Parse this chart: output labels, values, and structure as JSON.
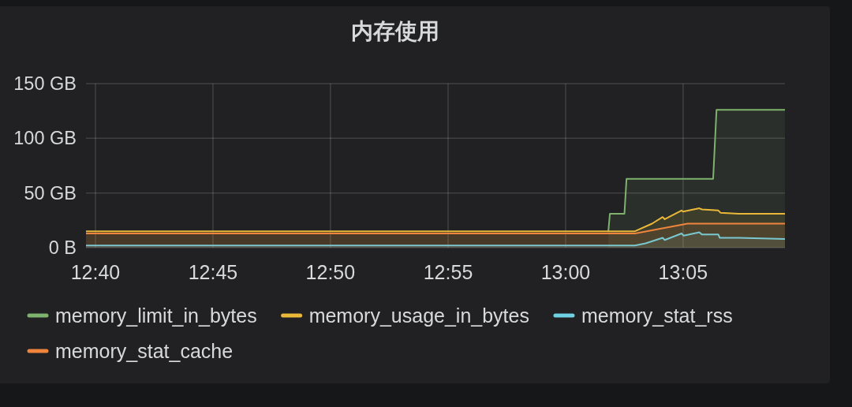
{
  "chart_data": {
    "type": "area",
    "title": "内存使用",
    "xlim": [
      12.66,
      13.1555
    ],
    "xticks": [
      {
        "value": 12.6667,
        "label": "12:40"
      },
      {
        "value": 12.75,
        "label": "12:45"
      },
      {
        "value": 12.8333,
        "label": "12:50"
      },
      {
        "value": 12.9167,
        "label": "12:55"
      },
      {
        "value": 13,
        "label": "13:00"
      },
      {
        "value": 13.0833,
        "label": "13:05"
      }
    ],
    "ylim": [
      0,
      150
    ],
    "yticks": [
      {
        "value": 0,
        "label": "0 B"
      },
      {
        "value": 50,
        "label": "50 GB"
      },
      {
        "value": 100,
        "label": "100 GB"
      },
      {
        "value": 150,
        "label": "150 GB"
      }
    ],
    "grid": true,
    "legend": "bottom",
    "series": [
      {
        "name": "memory_limit_in_bytes",
        "color": "#7eb26d",
        "x": [
          13.0303,
          13.0314,
          13.0417,
          13.0432,
          13.1046,
          13.107,
          13.1555
        ],
        "values": [
          15,
          31,
          31,
          63,
          63,
          126,
          126
        ]
      },
      {
        "name": "memory_usage_in_bytes",
        "color": "#eab839",
        "x": [
          12.66,
          13.0492,
          13.0613,
          13.0688,
          13.0703,
          13.0822,
          13.0833,
          13.0948,
          13.0967,
          13.1083,
          13.1098,
          13.1228,
          13.1555
        ],
        "values": [
          15,
          15,
          22,
          28,
          26,
          34,
          33,
          36,
          35,
          34,
          32,
          31,
          31
        ]
      },
      {
        "name": "memory_stat_rss",
        "color": "#6ed0e0",
        "x": [
          12.66,
          13.0492,
          13.0567,
          13.0688,
          13.0703,
          13.0822,
          13.0837,
          13.0948,
          13.0967,
          13.1083,
          13.1093,
          13.1228,
          13.1555
        ],
        "values": [
          2,
          2,
          4,
          9,
          7,
          13,
          11,
          14,
          12,
          12,
          9,
          9,
          8
        ]
      },
      {
        "name": "memory_stat_cache",
        "color": "#ef843c",
        "x": [
          12.66,
          13.0492,
          13.0865,
          13.1555
        ],
        "values": [
          13,
          13,
          22,
          22
        ]
      }
    ]
  }
}
